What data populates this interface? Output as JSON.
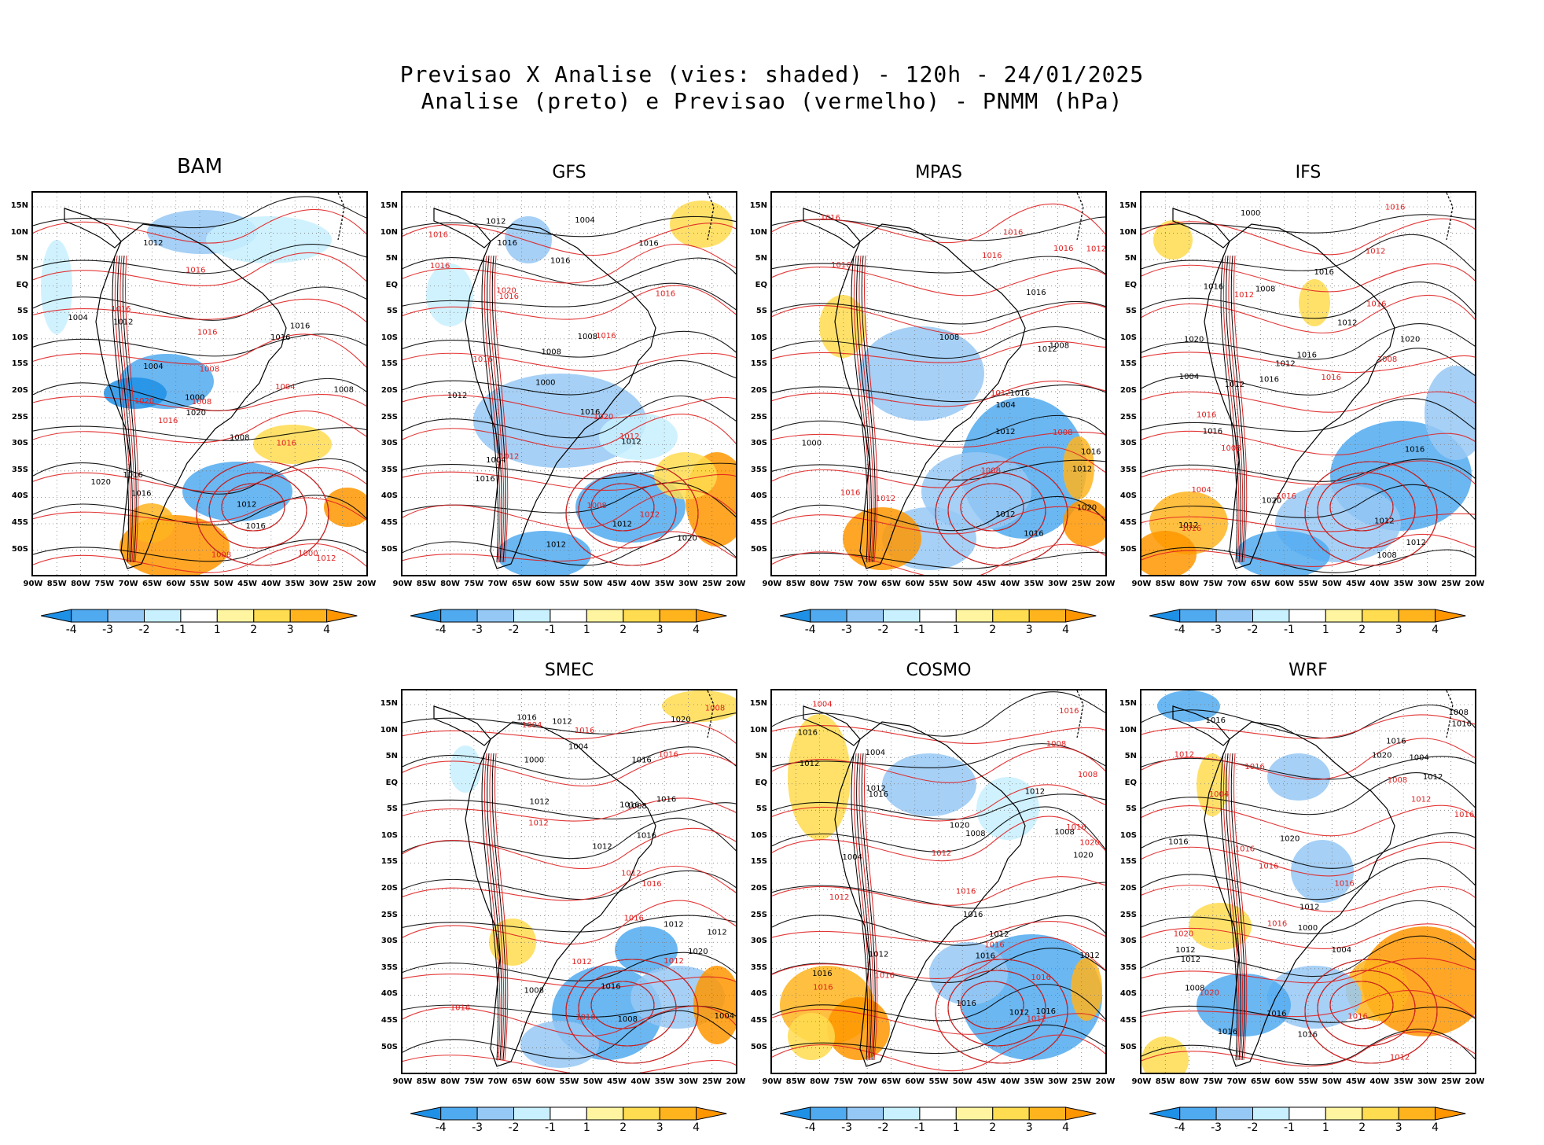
{
  "header": {
    "line1": "Previsao X Analise (vies: shaded) - 120h - 24/01/2025",
    "line2": "Analise (preto) e Previsao (vermelho) - PNMM (hPa)"
  },
  "axes": {
    "lat_labels": [
      "15N",
      "10N",
      "5N",
      "EQ",
      "5S",
      "10S",
      "15S",
      "20S",
      "25S",
      "30S",
      "35S",
      "40S",
      "45S",
      "50S"
    ],
    "lon_labels": [
      "90W",
      "85W",
      "80W",
      "75W",
      "70W",
      "65W",
      "60W",
      "55W",
      "50W",
      "45W",
      "40W",
      "35W",
      "30W",
      "25W",
      "20W"
    ]
  },
  "colorbar": {
    "labels": [
      "-4",
      "-3",
      "-2",
      "-1",
      "1",
      "2",
      "3",
      "4"
    ],
    "colors": [
      "#1e90e6",
      "#50aaf0",
      "#96c8f5",
      "#c8f0ff",
      "#ffffff",
      "#fff5a0",
      "#ffdc50",
      "#ffb41e",
      "#ff9600"
    ]
  },
  "colors": {
    "analysis": "#000000",
    "forecast": "#e02020"
  },
  "panels": [
    {
      "id": "bam",
      "title": "BAM",
      "labels_black": [
        "1016",
        "1012",
        "1016",
        "1012",
        "1016",
        "1012",
        "1008",
        "1004",
        "1020",
        "1016",
        "1020",
        "1004",
        "1000",
        "1008",
        "1016"
      ],
      "labels_red": [
        "1016",
        "1012",
        "1016",
        "1008",
        "1004",
        "1008",
        "1016",
        "1008",
        "1000",
        "1020",
        "1016",
        "1016"
      ]
    },
    {
      "id": "gfs",
      "title": "GFS",
      "labels_black": [
        "1016",
        "1012",
        "1016",
        "1012",
        "1016",
        "1012",
        "1012",
        "1008",
        "1004",
        "1008",
        "1016",
        "1020",
        "1016",
        "1012",
        "1004",
        "1000"
      ],
      "labels_red": [
        "1020",
        "1016",
        "1012",
        "1016",
        "1016",
        "1008",
        "1012",
        "1016",
        "1016",
        "1020",
        "1012",
        "1016"
      ]
    },
    {
      "id": "mpas",
      "title": "MPAS",
      "labels_black": [
        "1012",
        "1016",
        "1012",
        "1012",
        "1012",
        "1016",
        "1008",
        "1008",
        "1020",
        "1016",
        "1016",
        "1004",
        "1000"
      ],
      "labels_red": [
        "1012",
        "1016",
        "1016",
        "1008",
        "1012",
        "1016",
        "1016",
        "1016",
        "1012",
        "1008",
        "1016"
      ]
    },
    {
      "id": "ifs",
      "title": "IFS",
      "labels_black": [
        "1012",
        "1016",
        "1016",
        "1012",
        "1016",
        "1012",
        "1020",
        "1012",
        "1008",
        "1004",
        "1012",
        "1016",
        "1008",
        "1016",
        "1020",
        "1016",
        "1000",
        "1012",
        "1020"
      ],
      "labels_red": [
        "1016",
        "1012",
        "1016",
        "1012",
        "1016",
        "1008",
        "1016",
        "1016",
        "1004",
        "1008",
        "1016"
      ]
    },
    {
      "id": "smec",
      "title": "SMEC",
      "labels_black": [
        "1016",
        "1016",
        "1012",
        "1016",
        "1012",
        "1012",
        "1016",
        "1008",
        "1004",
        "1016",
        "1012",
        "1008",
        "1016",
        "1020",
        "1020",
        "1004",
        "1008",
        "1000",
        "1012"
      ],
      "labels_red": [
        "1016",
        "1012",
        "1012",
        "1016",
        "1016",
        "1012",
        "1008",
        "1016",
        "1016",
        "1012",
        "1004",
        "1016"
      ]
    },
    {
      "id": "cosmo",
      "title": "COSMO",
      "labels_black": [
        "1012",
        "1016",
        "1012",
        "1008",
        "1012",
        "1016",
        "1012",
        "1012",
        "1016",
        "1016",
        "1012",
        "1004",
        "1008",
        "1012",
        "1016",
        "1020",
        "1016",
        "1020",
        "1016",
        "1004"
      ],
      "labels_red": [
        "1016",
        "1012",
        "1016",
        "1012",
        "1016",
        "1016",
        "1008",
        "1020",
        "1016",
        "1016",
        "1016",
        "1004",
        "1008",
        "1012"
      ]
    },
    {
      "id": "wrf",
      "title": "WRF",
      "labels_black": [
        "1016",
        "1016",
        "1012",
        "1012",
        "1016",
        "1016",
        "1020",
        "1012",
        "1016",
        "1004",
        "1008",
        "1016",
        "1016",
        "1012",
        "1020",
        "1008",
        "1000",
        "1004"
      ],
      "labels_red": [
        "1020",
        "1016",
        "1016",
        "1012",
        "1016",
        "1016",
        "1008",
        "1016",
        "1016",
        "1020",
        "1012",
        "1012",
        "1016",
        "1004"
      ]
    }
  ]
}
